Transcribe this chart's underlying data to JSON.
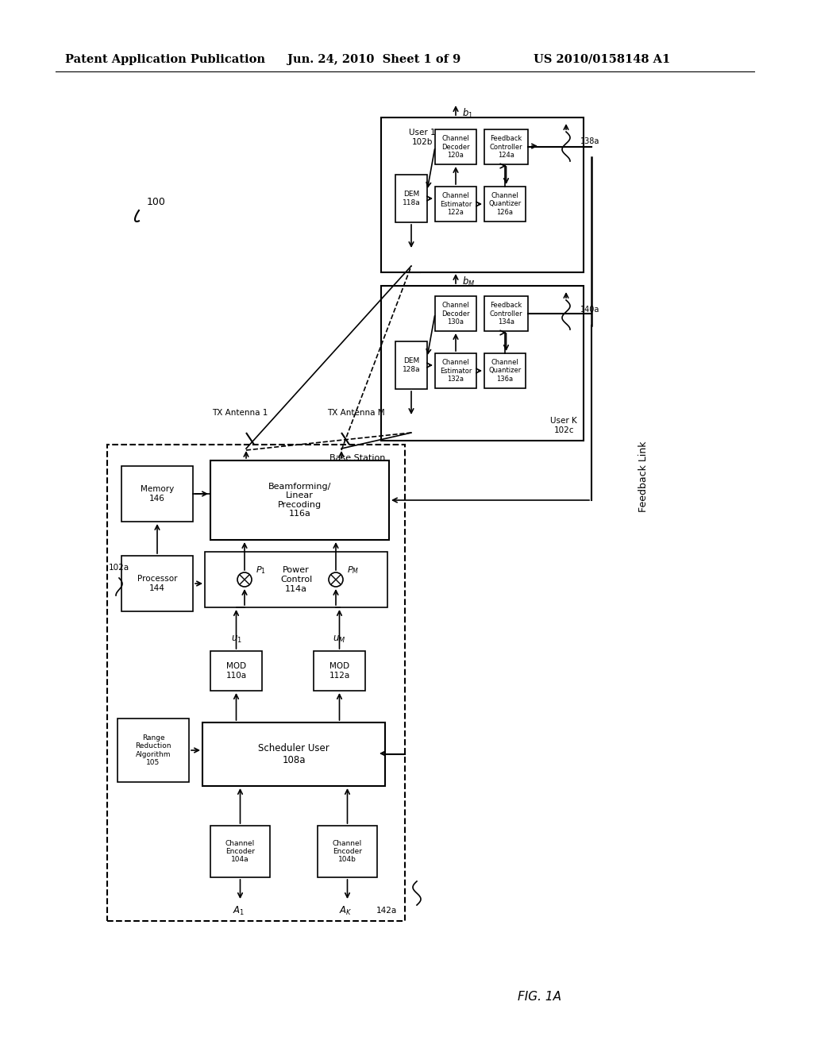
{
  "page_header_left": "Patent Application Publication",
  "page_header_mid": "Jun. 24, 2010  Sheet 1 of 9",
  "page_header_right": "US 2010/0158148 A1",
  "figure_label": "FIG. 1A",
  "bg_color": "#ffffff"
}
